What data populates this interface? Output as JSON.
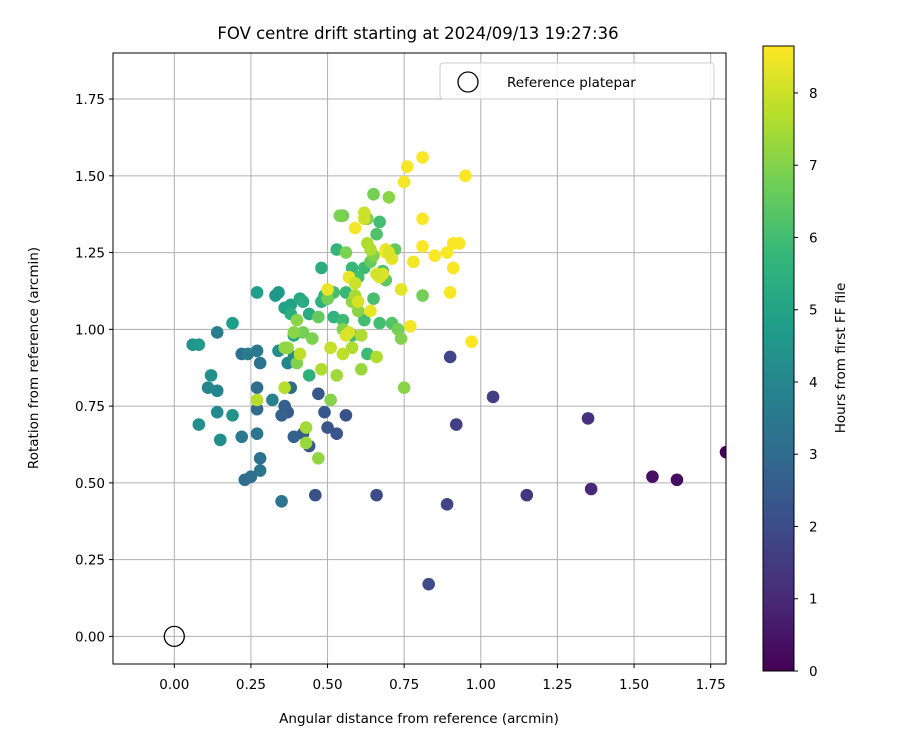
{
  "chart_data": {
    "type": "scatter",
    "title": "FOV centre drift starting at 2024/09/13 19:27:36",
    "xlabel": "Angular distance from reference (arcmin)",
    "ylabel": "Rotation from reference (arcmin)",
    "xlim": [
      -0.2,
      1.8
    ],
    "ylim": [
      -0.09,
      1.9
    ],
    "xticks": [
      "0.00",
      "0.25",
      "0.50",
      "0.75",
      "1.00",
      "1.25",
      "1.50",
      "1.75"
    ],
    "yticks": [
      "0.00",
      "0.25",
      "0.50",
      "0.75",
      "1.00",
      "1.25",
      "1.50",
      "1.75"
    ],
    "grid": true,
    "legend": {
      "position": "top-right",
      "label": "Reference platepar"
    },
    "reference": {
      "x": 0.0,
      "y": 0.0
    },
    "colorbar": {
      "label": "Hours from first FF file",
      "range": [
        0,
        8.65
      ],
      "ticks": [
        "0",
        "1",
        "2",
        "3",
        "4",
        "5",
        "6",
        "7",
        "8"
      ],
      "colormap": [
        "#440154",
        "#482878",
        "#3e4989",
        "#31688e",
        "#26828e",
        "#1f9e89",
        "#35b779",
        "#6ece58",
        "#b5de2b",
        "#fde725"
      ]
    },
    "points": [
      [
        1.8,
        0.6,
        0.1
      ],
      [
        1.64,
        0.51,
        0.3
      ],
      [
        1.56,
        0.52,
        0.4
      ],
      [
        1.36,
        0.48,
        1.0
      ],
      [
        1.35,
        0.71,
        1.2
      ],
      [
        1.15,
        0.46,
        1.4
      ],
      [
        1.04,
        0.78,
        1.6
      ],
      [
        0.92,
        0.69,
        1.7
      ],
      [
        0.9,
        0.91,
        1.8
      ],
      [
        0.89,
        0.43,
        1.8
      ],
      [
        0.83,
        0.17,
        2.0
      ],
      [
        0.66,
        0.46,
        2.0
      ],
      [
        0.56,
        0.72,
        2.2
      ],
      [
        0.53,
        0.66,
        2.3
      ],
      [
        0.5,
        0.68,
        2.3
      ],
      [
        0.49,
        0.73,
        2.4
      ],
      [
        0.47,
        0.79,
        2.4
      ],
      [
        0.46,
        0.46,
        2.2
      ],
      [
        0.44,
        0.62,
        2.4
      ],
      [
        0.42,
        0.66,
        2.5
      ],
      [
        0.37,
        0.73,
        2.5
      ],
      [
        0.36,
        0.75,
        2.6
      ],
      [
        0.35,
        0.72,
        2.7
      ],
      [
        0.35,
        0.44,
        3.4
      ],
      [
        0.39,
        0.65,
        2.7
      ],
      [
        0.38,
        0.81,
        3.0
      ],
      [
        0.28,
        0.58,
        3.2
      ],
      [
        0.28,
        0.54,
        3.3
      ],
      [
        0.25,
        0.52,
        3.2
      ],
      [
        0.23,
        0.51,
        3.1
      ],
      [
        0.27,
        0.74,
        3.0
      ],
      [
        0.27,
        0.81,
        3.1
      ],
      [
        0.27,
        0.66,
        3.4
      ],
      [
        0.22,
        0.65,
        3.5
      ],
      [
        0.22,
        0.92,
        3.2
      ],
      [
        0.24,
        0.92,
        3.6
      ],
      [
        0.28,
        0.89,
        3.3
      ],
      [
        0.27,
        0.93,
        3.5
      ],
      [
        0.32,
        0.77,
        3.8
      ],
      [
        0.34,
        0.93,
        4.2
      ],
      [
        0.37,
        0.89,
        3.9
      ],
      [
        0.39,
        0.91,
        4.1
      ],
      [
        0.14,
        0.99,
        3.7
      ],
      [
        0.14,
        0.8,
        3.9
      ],
      [
        0.11,
        0.81,
        4.0
      ],
      [
        0.12,
        0.85,
        4.3
      ],
      [
        0.14,
        0.73,
        4.1
      ],
      [
        0.15,
        0.64,
        4.2
      ],
      [
        0.19,
        0.72,
        4.4
      ],
      [
        0.08,
        0.69,
        4.3
      ],
      [
        0.06,
        0.95,
        4.5
      ],
      [
        0.08,
        0.95,
        4.7
      ],
      [
        0.19,
        1.02,
        4.8
      ],
      [
        0.27,
        1.12,
        4.8
      ],
      [
        0.33,
        1.11,
        4.6
      ],
      [
        0.34,
        1.12,
        4.6
      ],
      [
        0.36,
        1.07,
        5.0
      ],
      [
        0.38,
        1.08,
        5.0
      ],
      [
        0.38,
        1.05,
        5.4
      ],
      [
        0.39,
        0.98,
        5.2
      ],
      [
        0.41,
        1.1,
        5.1
      ],
      [
        0.42,
        1.09,
        5.3
      ],
      [
        0.44,
        1.05,
        5.3
      ],
      [
        0.44,
        0.85,
        5.5
      ],
      [
        0.48,
        1.2,
        5.4
      ],
      [
        0.48,
        1.09,
        5.5
      ],
      [
        0.49,
        1.11,
        5.7
      ],
      [
        0.5,
        1.1,
        5.7
      ],
      [
        0.52,
        1.04,
        5.6
      ],
      [
        0.52,
        1.12,
        6.0
      ],
      [
        0.53,
        1.26,
        5.7
      ],
      [
        0.55,
        1.03,
        5.9
      ],
      [
        0.56,
        1.12,
        5.8
      ],
      [
        0.58,
        0.98,
        5.9
      ],
      [
        0.58,
        1.2,
        5.8
      ],
      [
        0.6,
        1.17,
        6.0
      ],
      [
        0.62,
        1.2,
        5.9
      ],
      [
        0.62,
        1.03,
        6.0
      ],
      [
        0.63,
        0.92,
        5.9
      ],
      [
        0.65,
        1.1,
        6.1
      ],
      [
        0.66,
        1.31,
        6.2
      ],
      [
        0.67,
        1.35,
        6.0
      ],
      [
        0.67,
        1.02,
        6.0
      ],
      [
        0.68,
        1.19,
        6.2
      ],
      [
        0.69,
        1.16,
        6.4
      ],
      [
        0.71,
        1.02,
        6.3
      ],
      [
        0.72,
        1.26,
        6.5
      ],
      [
        0.64,
        1.22,
        6.6
      ],
      [
        0.63,
        1.36,
        6.9
      ],
      [
        0.65,
        1.44,
        6.8
      ],
      [
        0.55,
        1.37,
        6.7
      ],
      [
        0.56,
        1.25,
        6.9
      ],
      [
        0.54,
        1.37,
        6.9
      ],
      [
        0.5,
        1.1,
        6.8
      ],
      [
        0.47,
        1.04,
        6.6
      ],
      [
        0.45,
        0.97,
        6.9
      ],
      [
        0.42,
        0.99,
        6.8
      ],
      [
        0.4,
        1.03,
        7.1
      ],
      [
        0.4,
        0.89,
        7.0
      ],
      [
        0.39,
        0.99,
        7.1
      ],
      [
        0.37,
        0.94,
        7.3
      ],
      [
        0.36,
        0.94,
        7.2
      ],
      [
        0.43,
        0.68,
        7.4
      ],
      [
        0.43,
        0.63,
        7.3
      ],
      [
        0.47,
        0.58,
        7.2
      ],
      [
        0.51,
        0.77,
        7.0
      ],
      [
        0.55,
        1.0,
        7.0
      ],
      [
        0.58,
        1.09,
        7.2
      ],
      [
        0.6,
        1.06,
        7.1
      ],
      [
        0.61,
        0.87,
        7.3
      ],
      [
        0.65,
        1.24,
        7.0
      ],
      [
        0.7,
        1.43,
        7.1
      ],
      [
        0.73,
        1.0,
        6.8
      ],
      [
        0.74,
        0.97,
        7.0
      ],
      [
        0.75,
        0.81,
        7.1
      ],
      [
        0.81,
        1.11,
        6.8
      ],
      [
        0.48,
        0.87,
        7.6
      ],
      [
        0.53,
        0.85,
        7.4
      ],
      [
        0.58,
        0.94,
        7.6
      ],
      [
        0.59,
        1.11,
        7.5
      ],
      [
        0.61,
        0.98,
        7.6
      ],
      [
        0.63,
        1.28,
        7.6
      ],
      [
        0.64,
        1.26,
        7.6
      ],
      [
        0.66,
        0.91,
        7.6
      ],
      [
        0.27,
        0.77,
        7.7
      ],
      [
        0.36,
        0.81,
        7.7
      ],
      [
        0.41,
        0.92,
        7.8
      ],
      [
        0.51,
        0.94,
        7.9
      ],
      [
        0.55,
        0.92,
        7.8
      ],
      [
        0.57,
        0.99,
        8.1
      ],
      [
        0.6,
        1.09,
        8.1
      ],
      [
        0.62,
        1.38,
        8.0
      ],
      [
        0.62,
        1.36,
        8.0
      ],
      [
        0.67,
        1.17,
        8.2
      ],
      [
        0.68,
        1.18,
        8.2
      ],
      [
        0.69,
        1.26,
        8.3
      ],
      [
        0.69,
        1.25,
        8.5
      ],
      [
        0.71,
        1.23,
        8.3
      ],
      [
        0.74,
        1.13,
        8.3
      ],
      [
        0.75,
        1.48,
        8.5
      ],
      [
        0.76,
        1.53,
        8.6
      ],
      [
        0.77,
        1.01,
        8.5
      ],
      [
        0.78,
        1.22,
        8.5
      ],
      [
        0.81,
        1.27,
        8.6
      ],
      [
        0.81,
        1.36,
        8.6
      ],
      [
        0.81,
        1.56,
        8.6
      ],
      [
        0.85,
        1.24,
        8.6
      ],
      [
        0.89,
        1.25,
        8.6
      ],
      [
        0.9,
        1.12,
        8.6
      ],
      [
        0.91,
        1.2,
        8.6
      ],
      [
        0.91,
        1.28,
        8.6
      ],
      [
        0.93,
        1.28,
        8.6
      ],
      [
        0.95,
        1.5,
        8.6
      ],
      [
        0.97,
        0.96,
        8.6
      ],
      [
        0.5,
        1.13,
        8.4
      ],
      [
        0.56,
        0.98,
        8.2
      ],
      [
        0.57,
        1.17,
        8.4
      ],
      [
        0.59,
        1.33,
        8.5
      ],
      [
        0.64,
        1.06,
        8.4
      ],
      [
        0.7,
        1.25,
        8.2
      ],
      [
        0.66,
        1.18,
        8.1
      ],
      [
        0.59,
        1.15,
        8.0
      ]
    ]
  }
}
